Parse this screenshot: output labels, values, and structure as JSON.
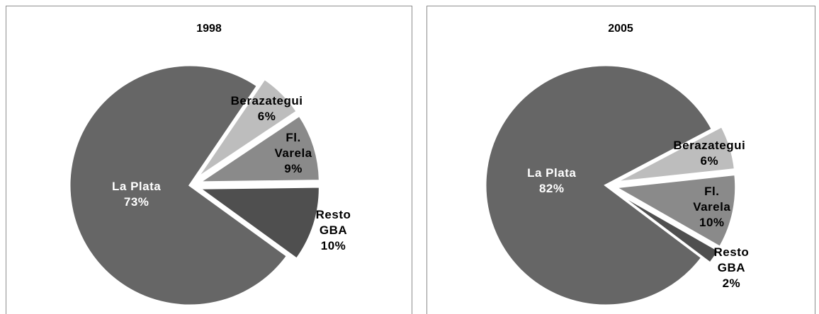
{
  "chart_data": [
    {
      "type": "pie",
      "title": "1998",
      "categories": [
        "La Plata",
        "Berazategui",
        "Fl. Varela",
        "Resto GBA"
      ],
      "values": [
        73,
        6,
        9,
        10
      ],
      "value_labels": [
        "73%",
        "6%",
        "9%",
        "10%"
      ],
      "colors": [
        "#666666",
        "#bdbdbd",
        "#8a8a8a",
        "#4f4f4f"
      ]
    },
    {
      "type": "pie",
      "title": "2005",
      "categories": [
        "La Plata",
        "Berazategui",
        "Fl. Varela",
        "Resto GBA"
      ],
      "values": [
        82,
        6,
        10,
        2
      ],
      "value_labels": [
        "82%",
        "6%",
        "10%",
        "2%"
      ],
      "colors": [
        "#666666",
        "#bdbdbd",
        "#8a8a8a",
        "#4f4f4f"
      ]
    }
  ]
}
